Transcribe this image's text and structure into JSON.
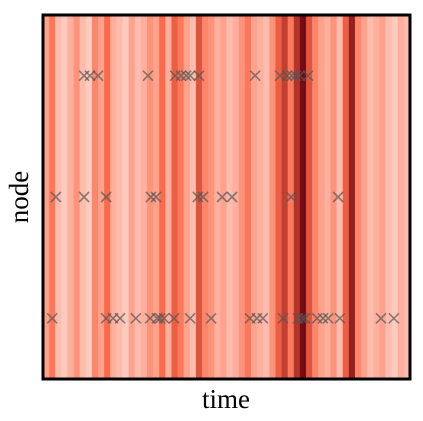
{
  "chart_data": {
    "type": "scatter",
    "x_label": "time",
    "y_label": "node",
    "xlim": [
      0,
      1
    ],
    "marker": "x",
    "marker_color": "#555555",
    "cmap": [
      "#fff5f0",
      "#fb6a4a",
      "#67000d"
    ],
    "heatmap": {
      "values": [
        0.3,
        0.45,
        0.2,
        0.15,
        0.25,
        0.35,
        0.2,
        0.15,
        0.4,
        0.3,
        0.5,
        0.25,
        0.2,
        0.15,
        0.3,
        0.2,
        0.25,
        0.35,
        0.3,
        0.5,
        0.25,
        0.55,
        0.45,
        0.3,
        0.2,
        0.6,
        0.4,
        0.35,
        0.25,
        0.3,
        0.2,
        0.25,
        0.35,
        0.45,
        0.3,
        0.25,
        0.2,
        0.35,
        0.55,
        0.7,
        0.45,
        0.75,
        0.95,
        0.6,
        0.4,
        0.3,
        0.25,
        0.35,
        0.2,
        0.55,
        0.85,
        0.4,
        0.3,
        0.2,
        0.25,
        0.3,
        0.2,
        0.15,
        0.25,
        0.2
      ]
    },
    "nodes": [
      {
        "times": [
          0.112,
          0.128,
          0.15,
          0.286,
          0.36,
          0.376,
          0.39,
          0.401,
          0.425,
          0.578,
          0.646,
          0.665,
          0.678,
          0.689,
          0.7,
          0.722
        ]
      },
      {
        "times": [
          0.035,
          0.112,
          0.172,
          0.294,
          0.308,
          0.422,
          0.436,
          0.488,
          0.515,
          0.676,
          0.804
        ]
      },
      {
        "times": [
          0.025,
          0.172,
          0.191,
          0.21,
          0.253,
          0.292,
          0.311,
          0.319,
          0.33,
          0.357,
          0.401,
          0.458,
          0.564,
          0.583,
          0.599,
          0.654,
          0.695,
          0.706,
          0.714,
          0.747,
          0.763,
          0.777,
          0.809,
          0.921,
          0.956
        ]
      }
    ]
  }
}
